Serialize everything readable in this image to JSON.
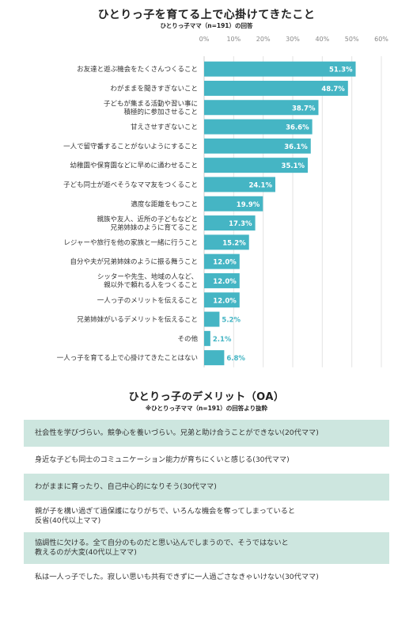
{
  "chart_data": {
    "type": "bar",
    "orientation": "horizontal",
    "title": "ひとりっ子を育てる上で心掛けてきたこと",
    "subtitle": "ひとりっ子ママ（n=191）の回答",
    "x_ticks": [
      "0%",
      "10%",
      "20%",
      "30%",
      "40%",
      "50%",
      "60%"
    ],
    "xlim": [
      0,
      60
    ],
    "grid": true,
    "bar_color": "#45b5c4",
    "categories": [
      "お友達と遊ぶ機会をたくさんつくること",
      "わがままを聞きすぎないこと",
      "子どもが集まる活動や習い事に\n積極的に参加させること",
      "甘えさせすぎないこと",
      "一人で留守番することがないようにすること",
      "幼稚園や保育園などに早めに通わせること",
      "子ども同士が遊べそうなママ友をつくること",
      "適度な距離をもつこと",
      "親族や友人、近所の子どもなどと\n兄弟姉妹のように育てること",
      "レジャーや旅行を他の家族と一緒に行うこと",
      "自分や夫が兄弟姉妹のように振る舞うこと",
      "シッターや先生、地域の人など、\n親以外で頼れる人をつくること",
      "一人っ子のメリットを伝えること",
      "兄弟姉妹がいるデメリットを伝えること",
      "その他",
      "一人っ子を育てる上で心掛けてきたことはない"
    ],
    "values": [
      51.3,
      48.7,
      38.7,
      36.6,
      36.1,
      35.1,
      24.1,
      19.9,
      17.3,
      15.2,
      12.0,
      12.0,
      12.0,
      5.2,
      2.1,
      6.8
    ],
    "value_labels": [
      "51.3%",
      "48.7%",
      "38.7%",
      "36.6%",
      "36.1%",
      "35.1%",
      "24.1%",
      "19.9%",
      "17.3%",
      "15.2%",
      "12.0%",
      "12.0%",
      "12.0%",
      "5.2%",
      "2.1%",
      "6.8%"
    ]
  },
  "demerits": {
    "title": "ひとりっ子のデメリット（OA）",
    "subtitle": "※ひとりっ子ママ（n=191）の回答より抜粋",
    "items": [
      {
        "text": "社会性を学びづらい。競争心を養いづらい。兄弟と助け合うことができない(20代ママ)",
        "shade": true
      },
      {
        "text": "身近な子ども同士のコミュニケーション能力が育ちにくいと感じる(30代ママ)",
        "shade": false
      },
      {
        "text": "わがままに育ったり、自己中心的になりそう(30代ママ)",
        "shade": true
      },
      {
        "text": "親が子を構い過ぎて過保護になりがちで、いろんな機会を奪ってしまっていると\n反省(40代以上ママ)",
        "shade": false
      },
      {
        "text": "協調性に欠ける。全て自分のものだと思い込んでしまうので、そうではないと\n教えるのが大変(40代以上ママ)",
        "shade": true
      },
      {
        "text": "私は一人っ子でした。寂しい思いも共有できずに一人過ごさなきゃいけない(30代ママ)",
        "shade": false
      }
    ]
  }
}
